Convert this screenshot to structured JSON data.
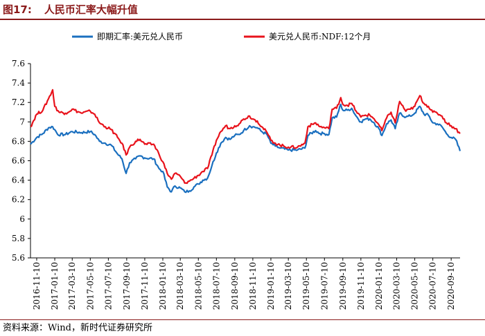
{
  "figure": {
    "number": "图17:",
    "title": "人民币汇率大幅升值",
    "source": "资料来源：Wind，新时代证券研究所"
  },
  "chart_data": {
    "type": "line",
    "legend_position": "top",
    "grid": false,
    "ylim": [
      5.6,
      7.6
    ],
    "yticks": [
      5.6,
      5.8,
      6,
      6.2,
      6.4,
      6.6,
      6.8,
      7,
      7.2,
      7.4,
      7.6
    ],
    "xlim": [
      "2016-10-20",
      "2020-10-10"
    ],
    "xticks": [
      "2016-11-10",
      "2017-01-10",
      "2017-03-10",
      "2017-05-10",
      "2017-07-10",
      "2017-09-10",
      "2017-11-10",
      "2018-01-10",
      "2018-03-10",
      "2018-05-10",
      "2018-07-10",
      "2018-09-10",
      "2018-11-10",
      "2019-01-10",
      "2019-03-10",
      "2019-05-10",
      "2019-07-10",
      "2019-09-10",
      "2019-11-10",
      "2020-01-10",
      "2020-03-10",
      "2020-05-10",
      "2020-07-10",
      "2020-09-10"
    ],
    "series": [
      {
        "name": "即期汇率:美元兑人民币",
        "color": "#1a6fbf",
        "points": [
          [
            "2016-10-20",
            6.77
          ],
          [
            "2016-11-10",
            6.84
          ],
          [
            "2016-12-01",
            6.88
          ],
          [
            "2016-12-20",
            6.94
          ],
          [
            "2017-01-03",
            6.95
          ],
          [
            "2017-01-10",
            6.92
          ],
          [
            "2017-01-20",
            6.87
          ],
          [
            "2017-02-15",
            6.87
          ],
          [
            "2017-03-10",
            6.9
          ],
          [
            "2017-04-10",
            6.89
          ],
          [
            "2017-05-10",
            6.9
          ],
          [
            "2017-05-25",
            6.87
          ],
          [
            "2017-06-10",
            6.8
          ],
          [
            "2017-06-30",
            6.78
          ],
          [
            "2017-07-20",
            6.76
          ],
          [
            "2017-08-10",
            6.67
          ],
          [
            "2017-08-25",
            6.62
          ],
          [
            "2017-09-08",
            6.47
          ],
          [
            "2017-09-20",
            6.58
          ],
          [
            "2017-10-10",
            6.62
          ],
          [
            "2017-10-25",
            6.65
          ],
          [
            "2017-11-10",
            6.63
          ],
          [
            "2017-12-10",
            6.62
          ],
          [
            "2017-12-28",
            6.52
          ],
          [
            "2018-01-10",
            6.49
          ],
          [
            "2018-01-25",
            6.33
          ],
          [
            "2018-02-08",
            6.28
          ],
          [
            "2018-02-20",
            6.34
          ],
          [
            "2018-03-10",
            6.32
          ],
          [
            "2018-03-25",
            6.28
          ],
          [
            "2018-04-10",
            6.29
          ],
          [
            "2018-04-25",
            6.33
          ],
          [
            "2018-05-10",
            6.36
          ],
          [
            "2018-05-25",
            6.4
          ],
          [
            "2018-06-10",
            6.42
          ],
          [
            "2018-06-25",
            6.55
          ],
          [
            "2018-07-10",
            6.68
          ],
          [
            "2018-07-25",
            6.78
          ],
          [
            "2018-08-10",
            6.84
          ],
          [
            "2018-08-25",
            6.82
          ],
          [
            "2018-09-10",
            6.86
          ],
          [
            "2018-09-25",
            6.87
          ],
          [
            "2018-10-10",
            6.91
          ],
          [
            "2018-10-30",
            6.96
          ],
          [
            "2018-11-10",
            6.95
          ],
          [
            "2018-11-25",
            6.94
          ],
          [
            "2018-12-10",
            6.9
          ],
          [
            "2018-12-28",
            6.87
          ],
          [
            "2019-01-10",
            6.78
          ],
          [
            "2019-01-25",
            6.75
          ],
          [
            "2019-02-10",
            6.73
          ],
          [
            "2019-03-10",
            6.71
          ],
          [
            "2019-04-10",
            6.71
          ],
          [
            "2019-05-05",
            6.73
          ],
          [
            "2019-05-15",
            6.86
          ],
          [
            "2019-06-10",
            6.91
          ],
          [
            "2019-06-25",
            6.88
          ],
          [
            "2019-07-10",
            6.88
          ],
          [
            "2019-07-25",
            6.87
          ],
          [
            "2019-08-05",
            7.04
          ],
          [
            "2019-08-20",
            7.05
          ],
          [
            "2019-09-03",
            7.18
          ],
          [
            "2019-09-10",
            7.12
          ],
          [
            "2019-09-25",
            7.12
          ],
          [
            "2019-10-10",
            7.14
          ],
          [
            "2019-10-25",
            7.06
          ],
          [
            "2019-11-10",
            7.0
          ],
          [
            "2019-11-25",
            7.03
          ],
          [
            "2019-12-10",
            7.03
          ],
          [
            "2019-12-25",
            6.99
          ],
          [
            "2020-01-10",
            6.93
          ],
          [
            "2020-01-20",
            6.86
          ],
          [
            "2020-02-05",
            6.98
          ],
          [
            "2020-02-20",
            7.02
          ],
          [
            "2020-03-05",
            6.93
          ],
          [
            "2020-03-20",
            7.09
          ],
          [
            "2020-04-10",
            7.05
          ],
          [
            "2020-04-25",
            7.06
          ],
          [
            "2020-05-10",
            7.09
          ],
          [
            "2020-05-27",
            7.16
          ],
          [
            "2020-06-10",
            7.08
          ],
          [
            "2020-06-25",
            7.07
          ],
          [
            "2020-07-10",
            6.99
          ],
          [
            "2020-07-25",
            6.98
          ],
          [
            "2020-08-10",
            6.95
          ],
          [
            "2020-08-25",
            6.88
          ],
          [
            "2020-09-10",
            6.84
          ],
          [
            "2020-09-25",
            6.82
          ],
          [
            "2020-10-10",
            6.7
          ]
        ]
      },
      {
        "name": "美元兑人民币:NDF:12个月",
        "color": "#e8121b",
        "points": [
          [
            "2016-10-20",
            6.95
          ],
          [
            "2016-11-10",
            7.08
          ],
          [
            "2016-12-01",
            7.12
          ],
          [
            "2016-12-20",
            7.24
          ],
          [
            "2017-01-03",
            7.33
          ],
          [
            "2017-01-10",
            7.16
          ],
          [
            "2017-01-25",
            7.1
          ],
          [
            "2017-02-15",
            7.09
          ],
          [
            "2017-03-10",
            7.13
          ],
          [
            "2017-04-10",
            7.09
          ],
          [
            "2017-05-10",
            7.11
          ],
          [
            "2017-05-25",
            7.08
          ],
          [
            "2017-06-10",
            6.99
          ],
          [
            "2017-06-30",
            6.95
          ],
          [
            "2017-07-20",
            6.92
          ],
          [
            "2017-08-10",
            6.84
          ],
          [
            "2017-08-25",
            6.78
          ],
          [
            "2017-09-08",
            6.66
          ],
          [
            "2017-09-20",
            6.74
          ],
          [
            "2017-10-10",
            6.8
          ],
          [
            "2017-10-25",
            6.82
          ],
          [
            "2017-11-10",
            6.77
          ],
          [
            "2017-12-10",
            6.77
          ],
          [
            "2017-12-28",
            6.67
          ],
          [
            "2018-01-10",
            6.59
          ],
          [
            "2018-01-25",
            6.47
          ],
          [
            "2018-02-08",
            6.41
          ],
          [
            "2018-02-20",
            6.47
          ],
          [
            "2018-03-10",
            6.44
          ],
          [
            "2018-03-25",
            6.37
          ],
          [
            "2018-04-10",
            6.39
          ],
          [
            "2018-04-25",
            6.42
          ],
          [
            "2018-05-10",
            6.45
          ],
          [
            "2018-05-25",
            6.49
          ],
          [
            "2018-06-10",
            6.52
          ],
          [
            "2018-06-25",
            6.66
          ],
          [
            "2018-07-10",
            6.81
          ],
          [
            "2018-07-25",
            6.9
          ],
          [
            "2018-08-10",
            6.96
          ],
          [
            "2018-08-25",
            6.93
          ],
          [
            "2018-09-10",
            6.96
          ],
          [
            "2018-09-25",
            6.98
          ],
          [
            "2018-10-10",
            7.03
          ],
          [
            "2018-10-30",
            7.06
          ],
          [
            "2018-11-10",
            7.03
          ],
          [
            "2018-11-25",
            7.01
          ],
          [
            "2018-12-10",
            6.95
          ],
          [
            "2018-12-28",
            6.89
          ],
          [
            "2019-01-10",
            6.81
          ],
          [
            "2019-01-25",
            6.78
          ],
          [
            "2019-02-10",
            6.76
          ],
          [
            "2019-03-10",
            6.74
          ],
          [
            "2019-04-10",
            6.74
          ],
          [
            "2019-05-05",
            6.78
          ],
          [
            "2019-05-15",
            6.95
          ],
          [
            "2019-06-10",
            6.99
          ],
          [
            "2019-06-25",
            6.95
          ],
          [
            "2019-07-10",
            6.94
          ],
          [
            "2019-07-25",
            6.93
          ],
          [
            "2019-08-05",
            7.13
          ],
          [
            "2019-08-20",
            7.14
          ],
          [
            "2019-09-03",
            7.25
          ],
          [
            "2019-09-10",
            7.18
          ],
          [
            "2019-09-25",
            7.17
          ],
          [
            "2019-10-10",
            7.19
          ],
          [
            "2019-10-25",
            7.11
          ],
          [
            "2019-11-10",
            7.05
          ],
          [
            "2019-11-25",
            7.07
          ],
          [
            "2019-12-10",
            7.07
          ],
          [
            "2019-12-25",
            7.03
          ],
          [
            "2020-01-10",
            6.97
          ],
          [
            "2020-01-20",
            6.91
          ],
          [
            "2020-02-05",
            7.04
          ],
          [
            "2020-02-20",
            7.1
          ],
          [
            "2020-03-05",
            6.99
          ],
          [
            "2020-03-20",
            7.21
          ],
          [
            "2020-04-10",
            7.11
          ],
          [
            "2020-04-25",
            7.13
          ],
          [
            "2020-05-10",
            7.16
          ],
          [
            "2020-05-27",
            7.27
          ],
          [
            "2020-06-10",
            7.19
          ],
          [
            "2020-06-25",
            7.16
          ],
          [
            "2020-07-10",
            7.1
          ],
          [
            "2020-07-25",
            7.09
          ],
          [
            "2020-08-10",
            7.06
          ],
          [
            "2020-08-25",
            6.99
          ],
          [
            "2020-09-10",
            6.96
          ],
          [
            "2020-09-25",
            6.93
          ],
          [
            "2020-10-10",
            6.88
          ]
        ]
      }
    ]
  }
}
